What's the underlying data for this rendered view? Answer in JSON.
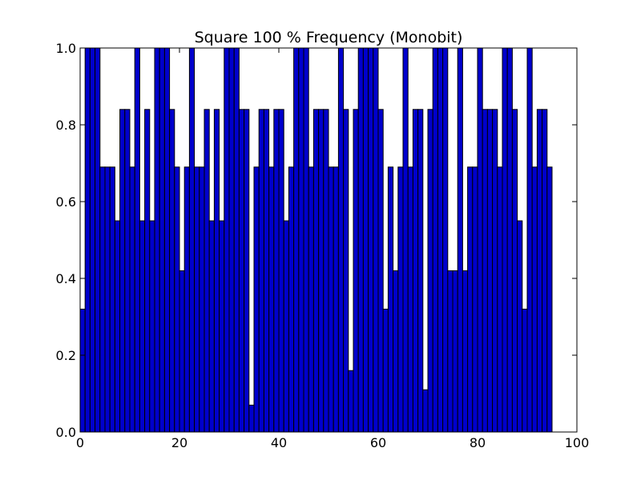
{
  "chart_data": {
    "type": "bar",
    "title": "Square 100 % Frequency (Monobit)",
    "xlabel": "",
    "ylabel": "",
    "xlim": [
      0,
      100
    ],
    "ylim": [
      0,
      1.0
    ],
    "xticks": [
      "0",
      "20",
      "40",
      "60",
      "80",
      "100"
    ],
    "yticks": [
      "0.0",
      "0.2",
      "0.4",
      "0.6",
      "0.8",
      "1.0"
    ],
    "bar_color": "#0000cc",
    "edge_color": "#000000",
    "bar_width": 1,
    "values": [
      0.32,
      1.0,
      1.0,
      1.0,
      0.69,
      0.69,
      0.69,
      0.55,
      0.84,
      0.84,
      0.69,
      1.0,
      0.55,
      0.84,
      0.55,
      1.0,
      1.0,
      1.0,
      0.84,
      0.69,
      0.42,
      0.69,
      1.0,
      0.69,
      0.69,
      0.84,
      0.55,
      0.84,
      0.55,
      1.0,
      1.0,
      1.0,
      0.84,
      0.84,
      0.07,
      0.69,
      0.84,
      0.84,
      0.69,
      0.84,
      0.84,
      0.55,
      0.69,
      1.0,
      1.0,
      1.0,
      0.69,
      0.84,
      0.84,
      0.84,
      0.69,
      0.69,
      1.0,
      0.84,
      0.16,
      0.84,
      1.0,
      1.0,
      1.0,
      1.0,
      0.84,
      0.32,
      0.69,
      0.42,
      0.69,
      1.0,
      0.69,
      0.84,
      0.84,
      0.11,
      0.84,
      1.0,
      1.0,
      1.0,
      0.42,
      0.42,
      1.0,
      0.42,
      0.69,
      0.69,
      1.0,
      0.84,
      0.84,
      0.84,
      0.69,
      1.0,
      1.0,
      0.84,
      0.55,
      0.32,
      1.0,
      0.69,
      0.84,
      0.84,
      0.69
    ]
  }
}
